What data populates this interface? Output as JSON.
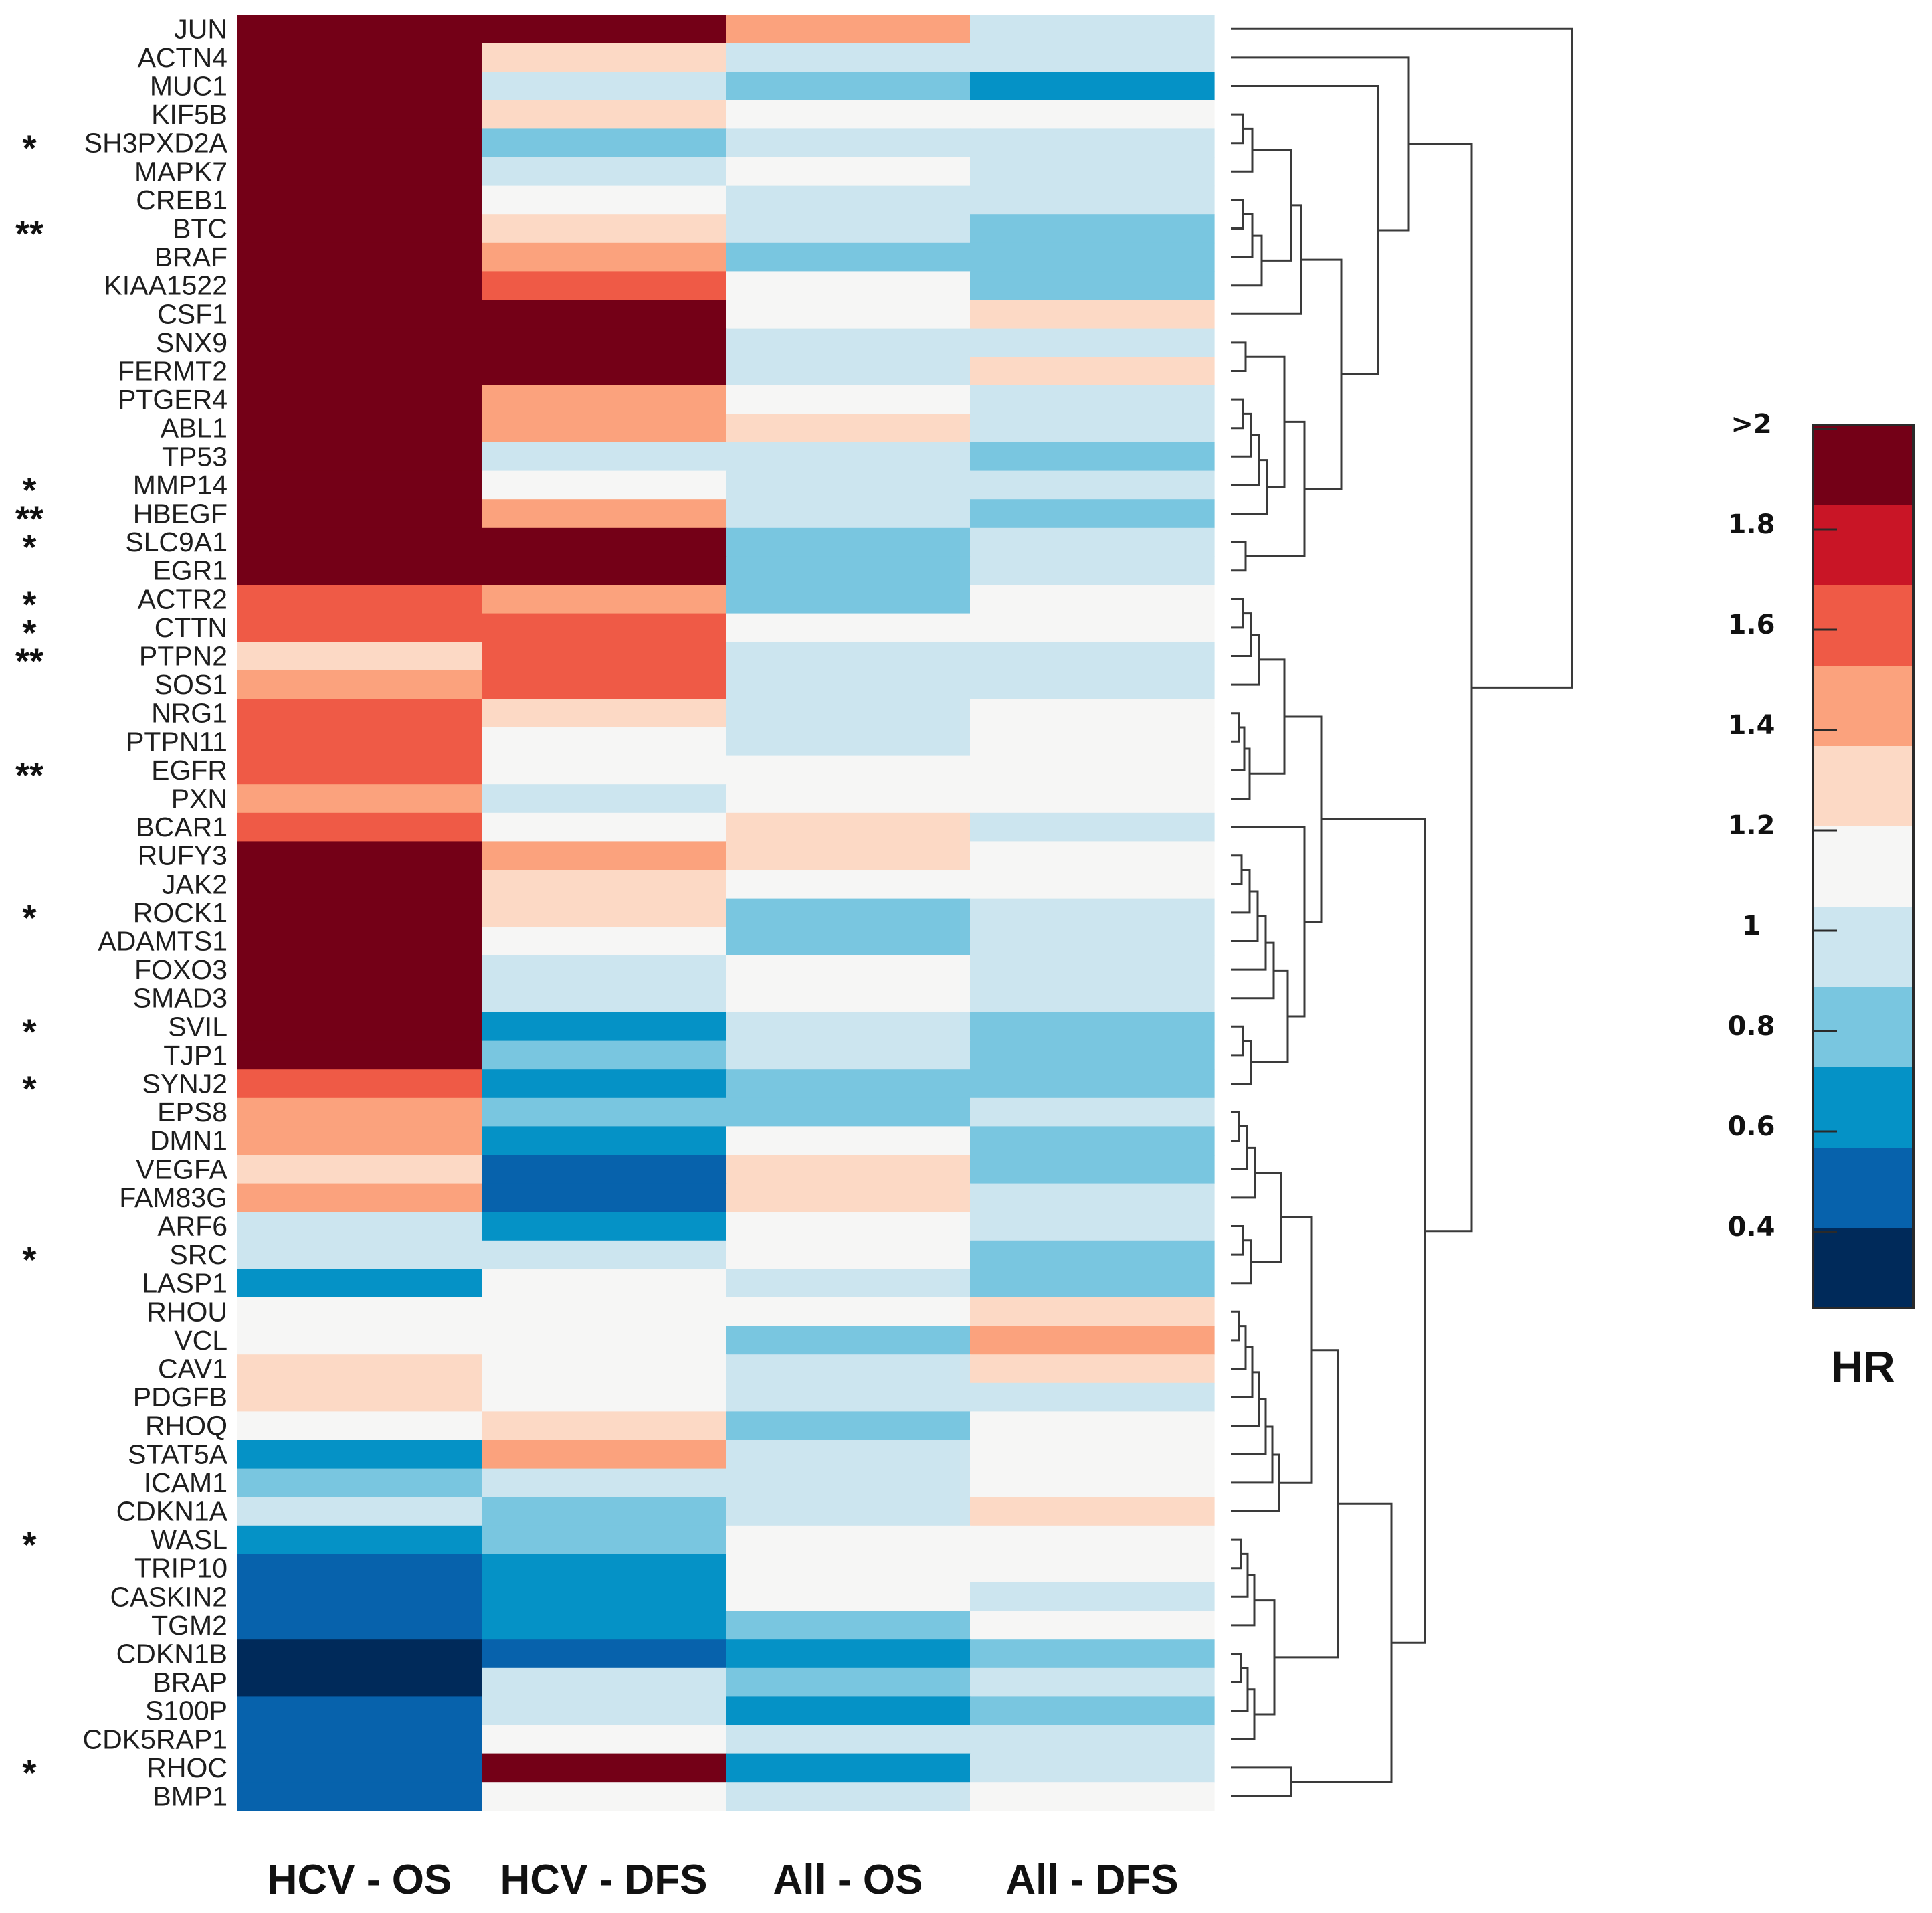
{
  "chart_data": {
    "type": "heatmap",
    "title": "",
    "columns": [
      "HCV - OS",
      "HCV - DFS",
      "All - OS",
      "All - DFS"
    ],
    "rows": [
      "JUN",
      "ACTN4",
      "MUC1",
      "KIF5B",
      "SH3PXD2A",
      "MAPK7",
      "CREB1",
      "BTC",
      "BRAF",
      "KIAA1522",
      "CSF1",
      "SNX9",
      "FERMT2",
      "PTGER4",
      "ABL1",
      "TP53",
      "MMP14",
      "HBEGF",
      "SLC9A1",
      "EGR1",
      "ACTR2",
      "CTTN",
      "PTPN2",
      "SOS1",
      "NRG1",
      "PTPN11",
      "EGFR",
      "PXN",
      "BCAR1",
      "RUFY3",
      "JAK2",
      "ROCK1",
      "ADAMTS1",
      "FOXO3",
      "SMAD3",
      "SVIL",
      "TJP1",
      "SYNJ2",
      "EPS8",
      "DMN1",
      "VEGFA",
      "FAM83G",
      "ARF6",
      "SRC",
      "LASP1",
      "RHOU",
      "VCL",
      "CAV1",
      "PDGFB",
      "RHOQ",
      "STAT5A",
      "ICAM1",
      "CDKN1A",
      "WASL",
      "TRIP10",
      "CASKIN2",
      "TGM2",
      "CDKN1B",
      "BRAP",
      "S100P",
      "CDK5RAP1",
      "RHOC",
      "BMP1"
    ],
    "significance": [
      "",
      "",
      "",
      "",
      "*",
      "",
      "",
      "**",
      "",
      "",
      "",
      "",
      "",
      "",
      "",
      "",
      "*",
      "**",
      "*",
      "",
      "*",
      "*",
      "**",
      "",
      "",
      "",
      "**",
      "",
      "",
      "",
      "",
      "*",
      "",
      "",
      "",
      "*",
      "",
      "*",
      "",
      "",
      "",
      "",
      "",
      "*",
      "",
      "",
      "",
      "",
      "",
      "",
      "",
      "",
      "",
      "*",
      "",
      "",
      "",
      "",
      "",
      "",
      "",
      "*",
      ""
    ],
    "values": [
      [
        2.1,
        2.1,
        1.35,
        0.9
      ],
      [
        2.1,
        1.25,
        0.9,
        0.9
      ],
      [
        2.1,
        0.9,
        0.75,
        0.65
      ],
      [
        2.1,
        1.25,
        1.05,
        1.05
      ],
      [
        2.1,
        0.75,
        0.9,
        0.9
      ],
      [
        2.1,
        0.9,
        1.05,
        0.9
      ],
      [
        2.1,
        1.05,
        0.9,
        0.9
      ],
      [
        2.1,
        1.25,
        0.9,
        0.75
      ],
      [
        2.1,
        1.35,
        0.75,
        0.75
      ],
      [
        2.1,
        1.7,
        1.05,
        0.75
      ],
      [
        2.1,
        2.1,
        1.05,
        1.25
      ],
      [
        2.1,
        2.1,
        0.9,
        0.9
      ],
      [
        2.1,
        2.1,
        0.9,
        1.25
      ],
      [
        2.1,
        1.35,
        1.05,
        0.9
      ],
      [
        2.1,
        1.35,
        1.25,
        0.9
      ],
      [
        2.1,
        0.9,
        0.9,
        0.75
      ],
      [
        2.1,
        1.05,
        0.9,
        0.9
      ],
      [
        2.1,
        1.35,
        0.9,
        0.75
      ],
      [
        2.1,
        2.1,
        0.75,
        0.9
      ],
      [
        2.1,
        2.1,
        0.75,
        0.9
      ],
      [
        1.7,
        1.35,
        0.75,
        1.05
      ],
      [
        1.5,
        1.7,
        1.05,
        1.05
      ],
      [
        1.25,
        1.7,
        0.9,
        0.9
      ],
      [
        1.35,
        1.5,
        0.9,
        0.9
      ],
      [
        1.5,
        1.25,
        0.9,
        1.05
      ],
      [
        1.7,
        1.05,
        0.9,
        1.05
      ],
      [
        1.7,
        1.05,
        1.05,
        1.05
      ],
      [
        1.35,
        0.9,
        1.05,
        1.05
      ],
      [
        1.5,
        1.05,
        1.25,
        0.9
      ],
      [
        2.1,
        1.35,
        1.25,
        1.05
      ],
      [
        2.1,
        1.25,
        1.05,
        1.05
      ],
      [
        2.1,
        1.25,
        0.75,
        0.9
      ],
      [
        2.1,
        1.05,
        0.75,
        0.9
      ],
      [
        2.1,
        0.9,
        1.05,
        0.9
      ],
      [
        2.1,
        0.9,
        1.05,
        0.9
      ],
      [
        2.1,
        0.65,
        0.9,
        0.75
      ],
      [
        2.1,
        0.75,
        0.9,
        0.75
      ],
      [
        1.7,
        0.65,
        0.75,
        0.75
      ],
      [
        1.35,
        0.75,
        0.75,
        0.9
      ],
      [
        1.35,
        0.65,
        1.05,
        0.75
      ],
      [
        1.25,
        0.55,
        1.25,
        0.75
      ],
      [
        1.35,
        0.55,
        1.25,
        0.9
      ],
      [
        0.9,
        0.65,
        1.05,
        0.9
      ],
      [
        0.9,
        0.9,
        1.05,
        0.75
      ],
      [
        0.65,
        1.05,
        0.9,
        0.75
      ],
      [
        1.05,
        1.05,
        1.05,
        1.25
      ],
      [
        1.05,
        1.05,
        0.75,
        1.35
      ],
      [
        1.25,
        1.05,
        0.9,
        1.25
      ],
      [
        1.25,
        1.05,
        0.9,
        0.9
      ],
      [
        1.05,
        1.25,
        0.75,
        1.05
      ],
      [
        0.65,
        1.35,
        0.9,
        1.05
      ],
      [
        0.75,
        0.9,
        0.9,
        1.05
      ],
      [
        0.9,
        0.75,
        0.9,
        1.25
      ],
      [
        0.65,
        0.75,
        1.05,
        1.05
      ],
      [
        0.55,
        0.65,
        1.05,
        1.05
      ],
      [
        0.55,
        0.65,
        1.05,
        0.9
      ],
      [
        0.55,
        0.65,
        0.75,
        1.05
      ],
      [
        0.35,
        0.55,
        0.65,
        0.75
      ],
      [
        0.35,
        0.9,
        0.75,
        0.9
      ],
      [
        0.55,
        0.9,
        0.65,
        0.75
      ],
      [
        0.55,
        1.05,
        0.9,
        0.9
      ],
      [
        0.55,
        2.1,
        0.65,
        0.9
      ],
      [
        0.55,
        1.05,
        0.9,
        1.05
      ]
    ],
    "colorbar": {
      "title": "HR",
      "tick_labels": [
        ">2",
        "1.8",
        "1.6",
        "1.4",
        "1.2",
        "1",
        "0.8",
        "0.6",
        "0.4"
      ],
      "colors": [
        "#740017",
        "#c91526",
        "#ef5a46",
        "#fba27d",
        "#fcd9c5",
        "#f6f6f5",
        "#cce5ef",
        "#79c6e0",
        "#0592c6",
        "#0762ac",
        "#002a5a"
      ]
    },
    "dendrogram_color": "#3a3a3a"
  }
}
